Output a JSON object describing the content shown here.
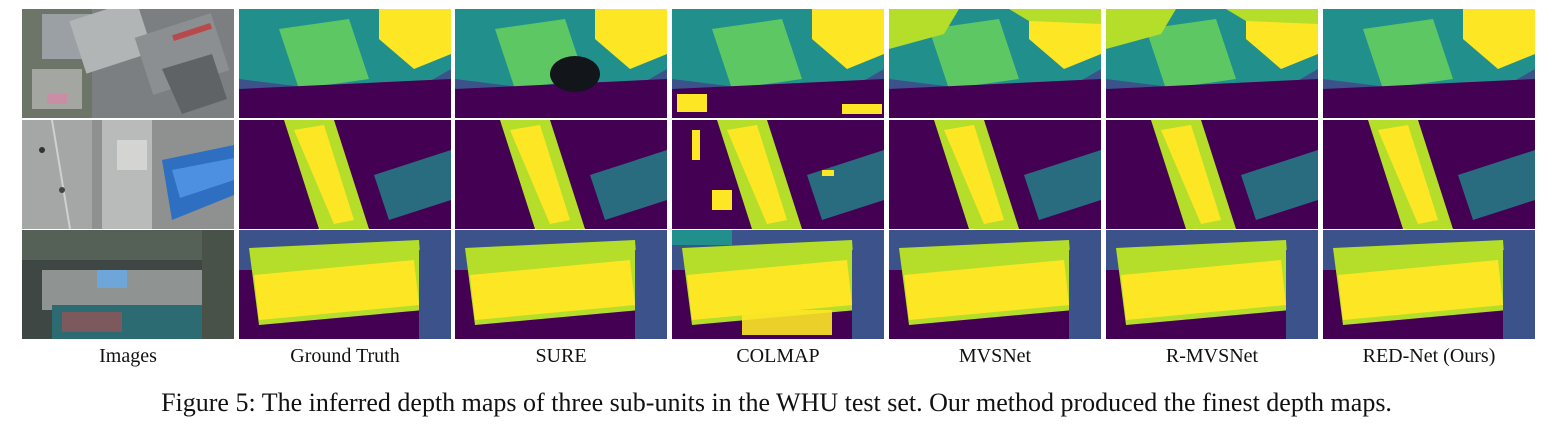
{
  "figure": {
    "column_labels": [
      "Images",
      "Ground Truth",
      "SURE",
      "COLMAP",
      "MVSNet",
      "R-MVSNet",
      "RED-Net (Ours)"
    ],
    "caption": "Figure 5: The inferred depth maps of three sub-units in the WHU test set. Our method produced the finest depth maps.",
    "row_count": 3,
    "colormap": [
      "#440154",
      "#3b528b",
      "#21908d",
      "#5dc863",
      "#b5de2b",
      "#fde725"
    ]
  }
}
